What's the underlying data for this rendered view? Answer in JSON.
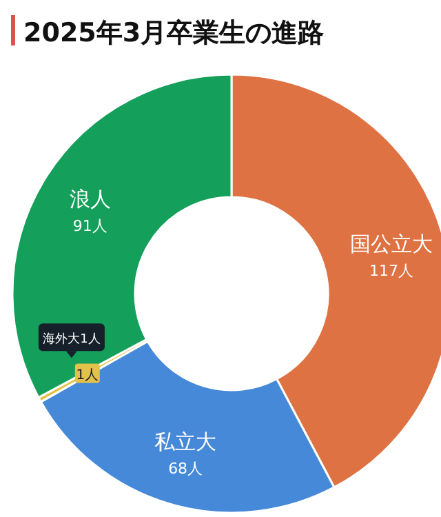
{
  "chart_data": {
    "type": "donut",
    "title": "2025年3月卒業生の進路",
    "categories": [
      "国公立大",
      "私立大",
      null,
      "浪人"
    ],
    "values": [
      117,
      68,
      1,
      91
    ],
    "colors": [
      "#de7242",
      "#4689d8",
      "#e3c24a",
      "#14a05a"
    ],
    "value_labels": [
      "117人",
      "68人",
      "1人",
      "91人"
    ],
    "annotations": [
      "海外大1人"
    ]
  }
}
